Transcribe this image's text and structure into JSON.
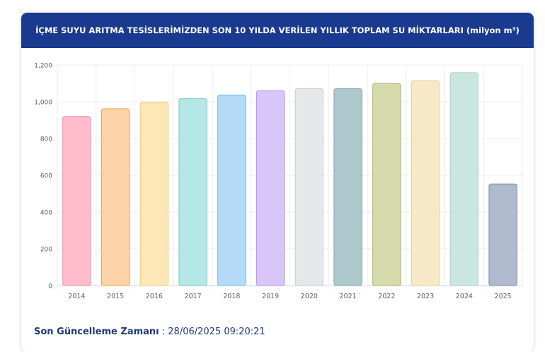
{
  "header": {
    "title": "İÇME SUYU ARITMA TESİSLERİMİZDEN SON 10 YILDA VERİLEN YILLIK TOPLAM SU MİKTARLARI (milyon m³)"
  },
  "footer": {
    "label": "Son Güncelleme Zamanı",
    "separator": " : ",
    "value": "28/06/2025 09:20:21"
  },
  "chart_data": {
    "type": "bar",
    "categories": [
      "2014",
      "2015",
      "2016",
      "2017",
      "2018",
      "2019",
      "2020",
      "2021",
      "2022",
      "2023",
      "2024",
      "2025"
    ],
    "values": [
      920,
      962,
      997,
      1017,
      1037,
      1060,
      1072,
      1071,
      1100,
      1115,
      1158,
      553
    ],
    "ylim": [
      0,
      1200
    ],
    "yticks": [
      "0",
      "200",
      "400",
      "600",
      "800",
      "1,000",
      "1,200"
    ],
    "ytick_values": [
      0,
      200,
      400,
      600,
      800,
      1000,
      1200
    ],
    "grid": true,
    "bar_fill_colors": [
      "#ffbccd",
      "#fdd2a7",
      "#fde7b7",
      "#b5e7e6",
      "#b4daf7",
      "#d9c5f8",
      "#e6e7e9",
      "#adc8cd",
      "#d5dbab",
      "#f7e9c8",
      "#cae7df",
      "#b0bace"
    ],
    "bar_stroke_colors": [
      "#ef8ba6",
      "#ef9f57",
      "#f5c86e",
      "#6bcac7",
      "#6ab5ea",
      "#b08ff0",
      "#c9cccf",
      "#7fa3a9",
      "#a8b36a",
      "#e9cf8e",
      "#9fd2c3",
      "#7a8aa8"
    ],
    "title": "",
    "xlabel": "",
    "ylabel": ""
  }
}
